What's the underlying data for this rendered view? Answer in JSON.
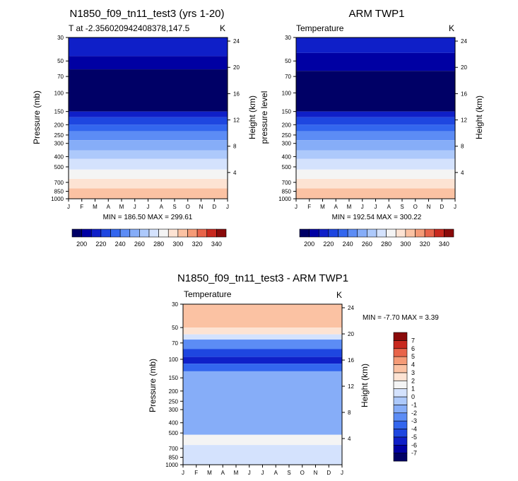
{
  "chart_data": [
    {
      "type": "heatmap",
      "title": "N1850_f09_tn11_test3 (yrs 1-20)",
      "subtitle_left": "T at -2.356020942408378,147.5",
      "subtitle_right": "K",
      "xlabel": "",
      "ylabel": "Pressure (mb)",
      "ylabel_right": "Height (km)",
      "x_ticks": [
        "J",
        "F",
        "M",
        "A",
        "M",
        "J",
        "J",
        "A",
        "S",
        "O",
        "N",
        "D",
        "J"
      ],
      "y_ticks": [
        "30",
        "50",
        "70",
        "100",
        "150",
        "200",
        "250",
        "300",
        "400",
        "500",
        "700",
        "850",
        "1000"
      ],
      "y_ticks_right": [
        "24",
        "20",
        "16",
        "12",
        "8",
        "4"
      ],
      "stats": "MIN = 186.50 MAX = 299.61",
      "levels": [
        200,
        210,
        220,
        230,
        240,
        250,
        260,
        270,
        280,
        290,
        300,
        310,
        320,
        330,
        340
      ],
      "level_labels": [
        "200",
        "220",
        "240",
        "260",
        "280",
        "300",
        "320",
        "340"
      ],
      "colors": [
        "#000066",
        "#0000a3",
        "#0f1fc8",
        "#1e46e0",
        "#3366ee",
        "#5c8cf5",
        "#86adf8",
        "#adc9fb",
        "#d4e2fd",
        "#f4f4f4",
        "#fde3d3",
        "#fbc2a3",
        "#f59b77",
        "#e8644a",
        "#c8281e",
        "#8a0a0a"
      ],
      "bands": [
        {
          "p_range": [
            30,
            45
          ],
          "color_index": 2
        },
        {
          "p_range": [
            45,
            60
          ],
          "color_index": 1
        },
        {
          "p_range": [
            60,
            150
          ],
          "color_index": 0
        },
        {
          "p_range": [
            150,
            170
          ],
          "color_index": 2
        },
        {
          "p_range": [
            170,
            200
          ],
          "color_index": 3
        },
        {
          "p_range": [
            200,
            230
          ],
          "color_index": 4
        },
        {
          "p_range": [
            230,
            280
          ],
          "color_index": 5
        },
        {
          "p_range": [
            280,
            350
          ],
          "color_index": 6
        },
        {
          "p_range": [
            350,
            420
          ],
          "color_index": 7
        },
        {
          "p_range": [
            420,
            530
          ],
          "color_index": 8
        },
        {
          "p_range": [
            530,
            650
          ],
          "color_index": 9
        },
        {
          "p_range": [
            650,
            800
          ],
          "color_index": 10
        },
        {
          "p_range": [
            800,
            1000
          ],
          "color_index": 11
        }
      ]
    },
    {
      "type": "heatmap",
      "title": "ARM TWP1",
      "subtitle_left": "Temperature",
      "subtitle_right": "K",
      "xlabel": "",
      "ylabel": "pressure level",
      "ylabel_right": "Height (km)",
      "x_ticks": [
        "J",
        "F",
        "M",
        "A",
        "M",
        "J",
        "J",
        "A",
        "S",
        "O",
        "N",
        "D",
        "J"
      ],
      "y_ticks": [
        "30",
        "50",
        "70",
        "100",
        "150",
        "200",
        "250",
        "300",
        "400",
        "500",
        "700",
        "850",
        "1000"
      ],
      "y_ticks_right": [
        "24",
        "20",
        "16",
        "12",
        "8",
        "4"
      ],
      "stats": "MIN = 192.54 MAX = 300.22",
      "levels": [
        200,
        210,
        220,
        230,
        240,
        250,
        260,
        270,
        280,
        290,
        300,
        310,
        320,
        330,
        340
      ],
      "level_labels": [
        "200",
        "220",
        "240",
        "260",
        "280",
        "300",
        "320",
        "340"
      ],
      "colors": [
        "#000066",
        "#0000a3",
        "#0f1fc8",
        "#1e46e0",
        "#3366ee",
        "#5c8cf5",
        "#86adf8",
        "#adc9fb",
        "#d4e2fd",
        "#f4f4f4",
        "#fde3d3",
        "#fbc2a3",
        "#f59b77",
        "#e8644a",
        "#c8281e",
        "#8a0a0a"
      ],
      "bands": [
        {
          "p_range": [
            30,
            42
          ],
          "color_index": 2
        },
        {
          "p_range": [
            42,
            62
          ],
          "color_index": 1
        },
        {
          "p_range": [
            62,
            150
          ],
          "color_index": 0
        },
        {
          "p_range": [
            150,
            170
          ],
          "color_index": 2
        },
        {
          "p_range": [
            170,
            200
          ],
          "color_index": 3
        },
        {
          "p_range": [
            200,
            230
          ],
          "color_index": 4
        },
        {
          "p_range": [
            230,
            280
          ],
          "color_index": 5
        },
        {
          "p_range": [
            280,
            350
          ],
          "color_index": 6
        },
        {
          "p_range": [
            350,
            420
          ],
          "color_index": 7
        },
        {
          "p_range": [
            420,
            530
          ],
          "color_index": 8
        },
        {
          "p_range": [
            530,
            650
          ],
          "color_index": 9
        },
        {
          "p_range": [
            650,
            800
          ],
          "color_index": 10
        },
        {
          "p_range": [
            800,
            1000
          ],
          "color_index": 11
        }
      ]
    },
    {
      "type": "heatmap",
      "title": "N1850_f09_tn11_test3 - ARM TWP1",
      "subtitle_left": "Temperature",
      "subtitle_right": "K",
      "xlabel": "",
      "ylabel": "Pressure (mb)",
      "ylabel_right": "Height (km)",
      "x_ticks": [
        "J",
        "F",
        "M",
        "A",
        "M",
        "J",
        "J",
        "A",
        "S",
        "O",
        "N",
        "D",
        "J"
      ],
      "y_ticks": [
        "30",
        "50",
        "70",
        "100",
        "150",
        "200",
        "250",
        "300",
        "400",
        "500",
        "700",
        "850",
        "1000"
      ],
      "y_ticks_right": [
        "24",
        "20",
        "16",
        "12",
        "8",
        "4"
      ],
      "stats": "MIN =  -7.70 MAX =   3.39",
      "levels": [
        -7,
        -6,
        -5,
        -4,
        -3,
        -2,
        -1,
        0,
        1,
        2,
        3,
        4,
        5,
        6,
        7
      ],
      "level_labels": [
        "-7",
        "-6",
        "-5",
        "-4",
        "-3",
        "-2",
        "-1",
        "0",
        "1",
        "2",
        "3",
        "4",
        "5",
        "6",
        "7"
      ],
      "colors": [
        "#000066",
        "#0000a3",
        "#0f1fc8",
        "#1e46e0",
        "#3366ee",
        "#5c8cf5",
        "#86adf8",
        "#adc9fb",
        "#d4e2fd",
        "#f4f4f4",
        "#fde3d3",
        "#fbc2a3",
        "#f59b77",
        "#e8644a",
        "#c8281e",
        "#8a0a0a"
      ],
      "bands": [
        {
          "p_range": [
            30,
            50
          ],
          "color_index": 11
        },
        {
          "p_range": [
            50,
            58
          ],
          "color_index": 10
        },
        {
          "p_range": [
            58,
            65
          ],
          "color_index": 8
        },
        {
          "p_range": [
            65,
            80
          ],
          "color_index": 5
        },
        {
          "p_range": [
            80,
            95
          ],
          "color_index": 3
        },
        {
          "p_range": [
            95,
            110
          ],
          "color_index": 2
        },
        {
          "p_range": [
            110,
            130
          ],
          "color_index": 4
        },
        {
          "p_range": [
            130,
            520
          ],
          "color_index": 6
        },
        {
          "p_range": [
            520,
            650
          ],
          "color_index": 9
        },
        {
          "p_range": [
            650,
            1000
          ],
          "color_index": 8
        }
      ]
    }
  ]
}
